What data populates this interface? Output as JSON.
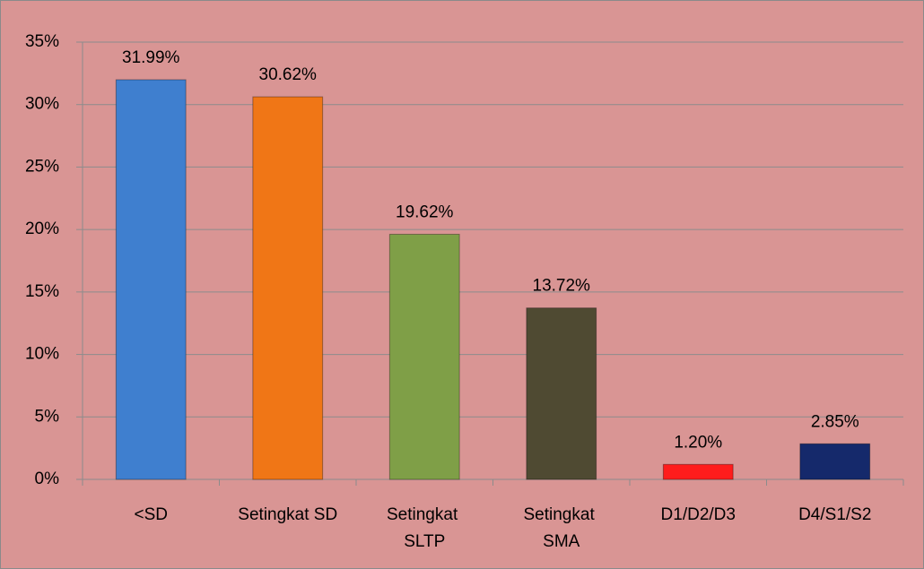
{
  "chart_data": {
    "type": "bar",
    "categories": [
      "<SD",
      "Setingkat SD",
      "Setingkat SLTP",
      "Setingkat SMA",
      "D1/D2/D3",
      "D4/S1/S2"
    ],
    "values": [
      31.99,
      30.62,
      19.62,
      13.72,
      1.2,
      2.85
    ],
    "value_labels": [
      "31.99%",
      "30.62%",
      "19.62%",
      "13.72%",
      "1.20%",
      "2.85%"
    ],
    "colors": [
      "#3f7fcf",
      "#f07616",
      "#7f9f47",
      "#4f4a32",
      "#ff1c1c",
      "#15296b"
    ],
    "ylim": [
      0,
      35
    ],
    "yticks": [
      {
        "value": 0,
        "label": "0%"
      },
      {
        "value": 5,
        "label": "5%"
      },
      {
        "value": 10,
        "label": "10%"
      },
      {
        "value": 15,
        "label": "15%"
      },
      {
        "value": 20,
        "label": "20%"
      },
      {
        "value": 25,
        "label": "25%"
      },
      {
        "value": 30,
        "label": "30%"
      },
      {
        "value": 35,
        "label": "35%"
      }
    ],
    "grid": true
  }
}
